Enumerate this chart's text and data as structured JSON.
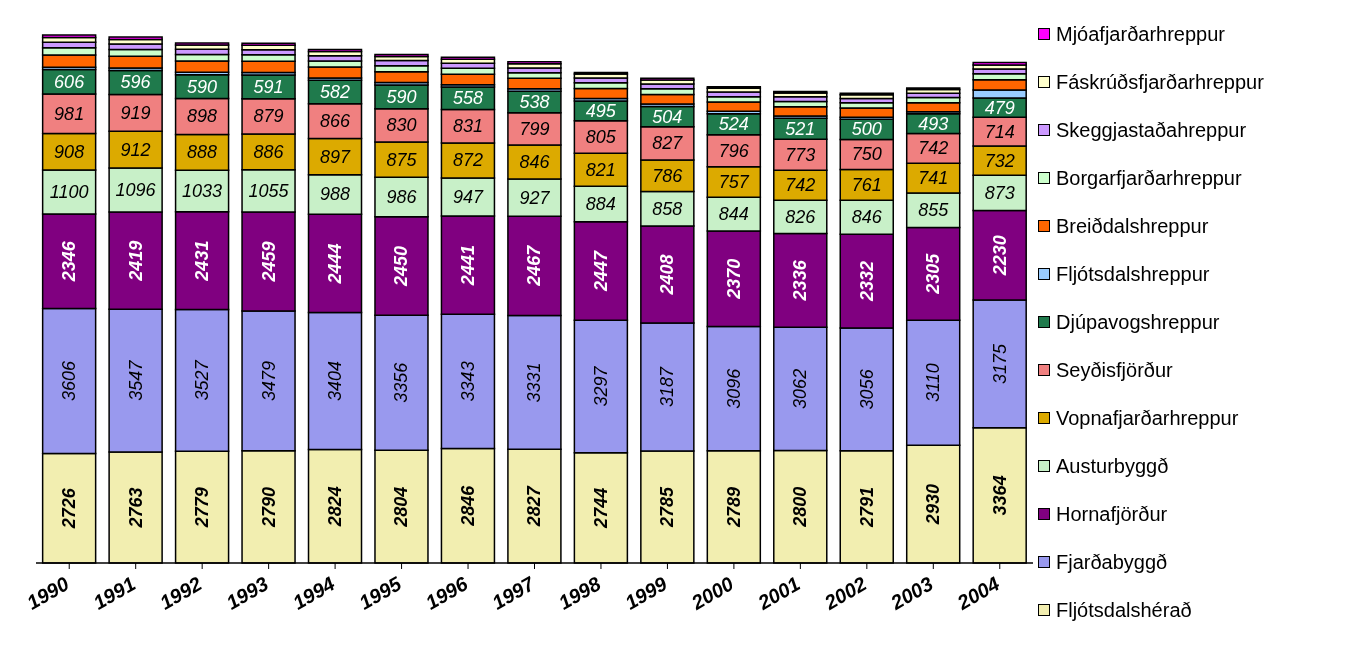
{
  "chart_data": {
    "type": "bar",
    "stacked": true,
    "legend": "right",
    "categories": [
      "1990",
      "1991",
      "1992",
      "1993",
      "1994",
      "1995",
      "1996",
      "1997",
      "1998",
      "1999",
      "2000",
      "2001",
      "2002",
      "2003",
      "2004"
    ],
    "series": [
      {
        "name": "Fljótsdalshérað",
        "color": "#f2eeb0",
        "values": [
          2726,
          2763,
          2779,
          2790,
          2824,
          2804,
          2846,
          2827,
          2744,
          2785,
          2789,
          2800,
          2791,
          2930,
          3364
        ],
        "value_labels": [
          "2726",
          "2763",
          "2779",
          "2790",
          "2824",
          "2804",
          "2846",
          "2827",
          "2744",
          "2785",
          "2789",
          "2800",
          "2791",
          "2930",
          "3364"
        ]
      },
      {
        "name": "Fjarðabyggð",
        "color": "#9999ee",
        "values": [
          3606,
          3547,
          3527,
          3479,
          3404,
          3356,
          3343,
          3331,
          3297,
          3187,
          3096,
          3062,
          3056,
          3110,
          3175
        ],
        "value_labels": [
          "3606",
          "3547",
          "3527",
          "3479",
          "3404",
          "3356",
          "3343",
          "3331",
          "3297",
          "3187",
          "3096",
          "3062",
          "3056",
          "3110",
          "3175"
        ]
      },
      {
        "name": "Hornafjörður",
        "color": "#800080",
        "values": [
          2346,
          2419,
          2431,
          2459,
          2444,
          2450,
          2441,
          2467,
          2447,
          2408,
          2370,
          2336,
          2332,
          2305,
          2230
        ],
        "value_labels": [
          "2346",
          "2419",
          "2431",
          "2459",
          "2444",
          "2450",
          "2441",
          "2467",
          "2447",
          "2408",
          "2370",
          "2336",
          "2332",
          "2305",
          "2230"
        ]
      },
      {
        "name": "Austurbyggð",
        "color": "#c8f0c8",
        "values": [
          1100,
          1096,
          1033,
          1055,
          988,
          986,
          947,
          927,
          884,
          858,
          844,
          826,
          846,
          855,
          873
        ],
        "value_labels": [
          "1100",
          "1096",
          "1033",
          "1055",
          "988",
          "986",
          "947",
          "927",
          "884",
          "858",
          "844",
          "826",
          "846",
          "855",
          "873"
        ]
      },
      {
        "name": "Vopnafjarðarhreppur",
        "color": "#dcaa00",
        "values": [
          908,
          912,
          888,
          886,
          897,
          875,
          872,
          846,
          821,
          786,
          757,
          742,
          761,
          741,
          732
        ],
        "value_labels": [
          "908",
          "912",
          "888",
          "886",
          "897",
          "875",
          "872",
          "846",
          "821",
          "786",
          "757",
          "742",
          "761",
          "741",
          "732"
        ]
      },
      {
        "name": "Seyðisfjörður",
        "color": "#f08080",
        "values": [
          981,
          919,
          898,
          879,
          866,
          830,
          831,
          799,
          805,
          827,
          796,
          773,
          750,
          742,
          714
        ],
        "value_labels": [
          "981",
          "919",
          "898",
          "879",
          "866",
          "830",
          "831",
          "799",
          "805",
          "827",
          "796",
          "773",
          "750",
          "742",
          "714"
        ]
      },
      {
        "name": "Djúpavogshreppur",
        "color": "#1f7a4c",
        "values": [
          606,
          596,
          590,
          591,
          582,
          590,
          558,
          538,
          495,
          504,
          524,
          521,
          500,
          493,
          479
        ],
        "value_labels": [
          "606",
          "596",
          "590",
          "591",
          "582",
          "590",
          "558",
          "538",
          "495",
          "504",
          "524",
          "521",
          "500",
          "493",
          "479"
        ]
      },
      {
        "name": "Fljótsdalshreppur",
        "color": "#99ccff",
        "values": [
          60,
          60,
          60,
          60,
          60,
          60,
          60,
          60,
          60,
          60,
          60,
          60,
          50,
          50,
          200
        ],
        "value_labels": [
          null,
          null,
          null,
          null,
          null,
          null,
          null,
          null,
          null,
          null,
          null,
          null,
          null,
          null,
          null
        ]
      },
      {
        "name": "Breiðdalshreppur",
        "color": "#ff6600",
        "values": [
          300,
          290,
          280,
          280,
          270,
          270,
          260,
          260,
          250,
          240,
          230,
          230,
          230,
          220,
          250
        ],
        "value_labels": [
          null,
          null,
          null,
          null,
          null,
          null,
          null,
          null,
          null,
          null,
          null,
          null,
          null,
          null,
          null
        ]
      },
      {
        "name": "Borgarfjarðarhreppur",
        "color": "#ccffcc",
        "values": [
          180,
          170,
          160,
          160,
          150,
          150,
          150,
          140,
          140,
          140,
          130,
          130,
          130,
          130,
          150
        ],
        "value_labels": [
          null,
          null,
          null,
          null,
          null,
          null,
          null,
          null,
          null,
          null,
          null,
          null,
          null,
          null,
          null
        ]
      },
      {
        "name": "Skeggjastaðahreppur",
        "color": "#cc99ff",
        "values": [
          140,
          140,
          130,
          130,
          130,
          130,
          120,
          120,
          120,
          120,
          120,
          120,
          110,
          110,
          120
        ],
        "value_labels": [
          null,
          null,
          null,
          null,
          null,
          null,
          null,
          null,
          null,
          null,
          null,
          null,
          null,
          null,
          null
        ]
      },
      {
        "name": "Fáskrúðsfjarðarhreppur",
        "color": "#ffffcc",
        "values": [
          120,
          110,
          110,
          110,
          110,
          100,
          100,
          100,
          100,
          100,
          90,
          90,
          90,
          90,
          100
        ],
        "value_labels": [
          null,
          null,
          null,
          null,
          null,
          null,
          null,
          null,
          null,
          null,
          null,
          null,
          null,
          null,
          null
        ]
      },
      {
        "name": "Mjóafjarðarhreppur",
        "color": "#ff00ff",
        "values": [
          60,
          60,
          50,
          50,
          50,
          50,
          50,
          50,
          40,
          40,
          40,
          40,
          40,
          40,
          60
        ],
        "value_labels": [
          null,
          null,
          null,
          null,
          null,
          null,
          null,
          null,
          null,
          null,
          null,
          null,
          null,
          null,
          null
        ]
      }
    ]
  }
}
